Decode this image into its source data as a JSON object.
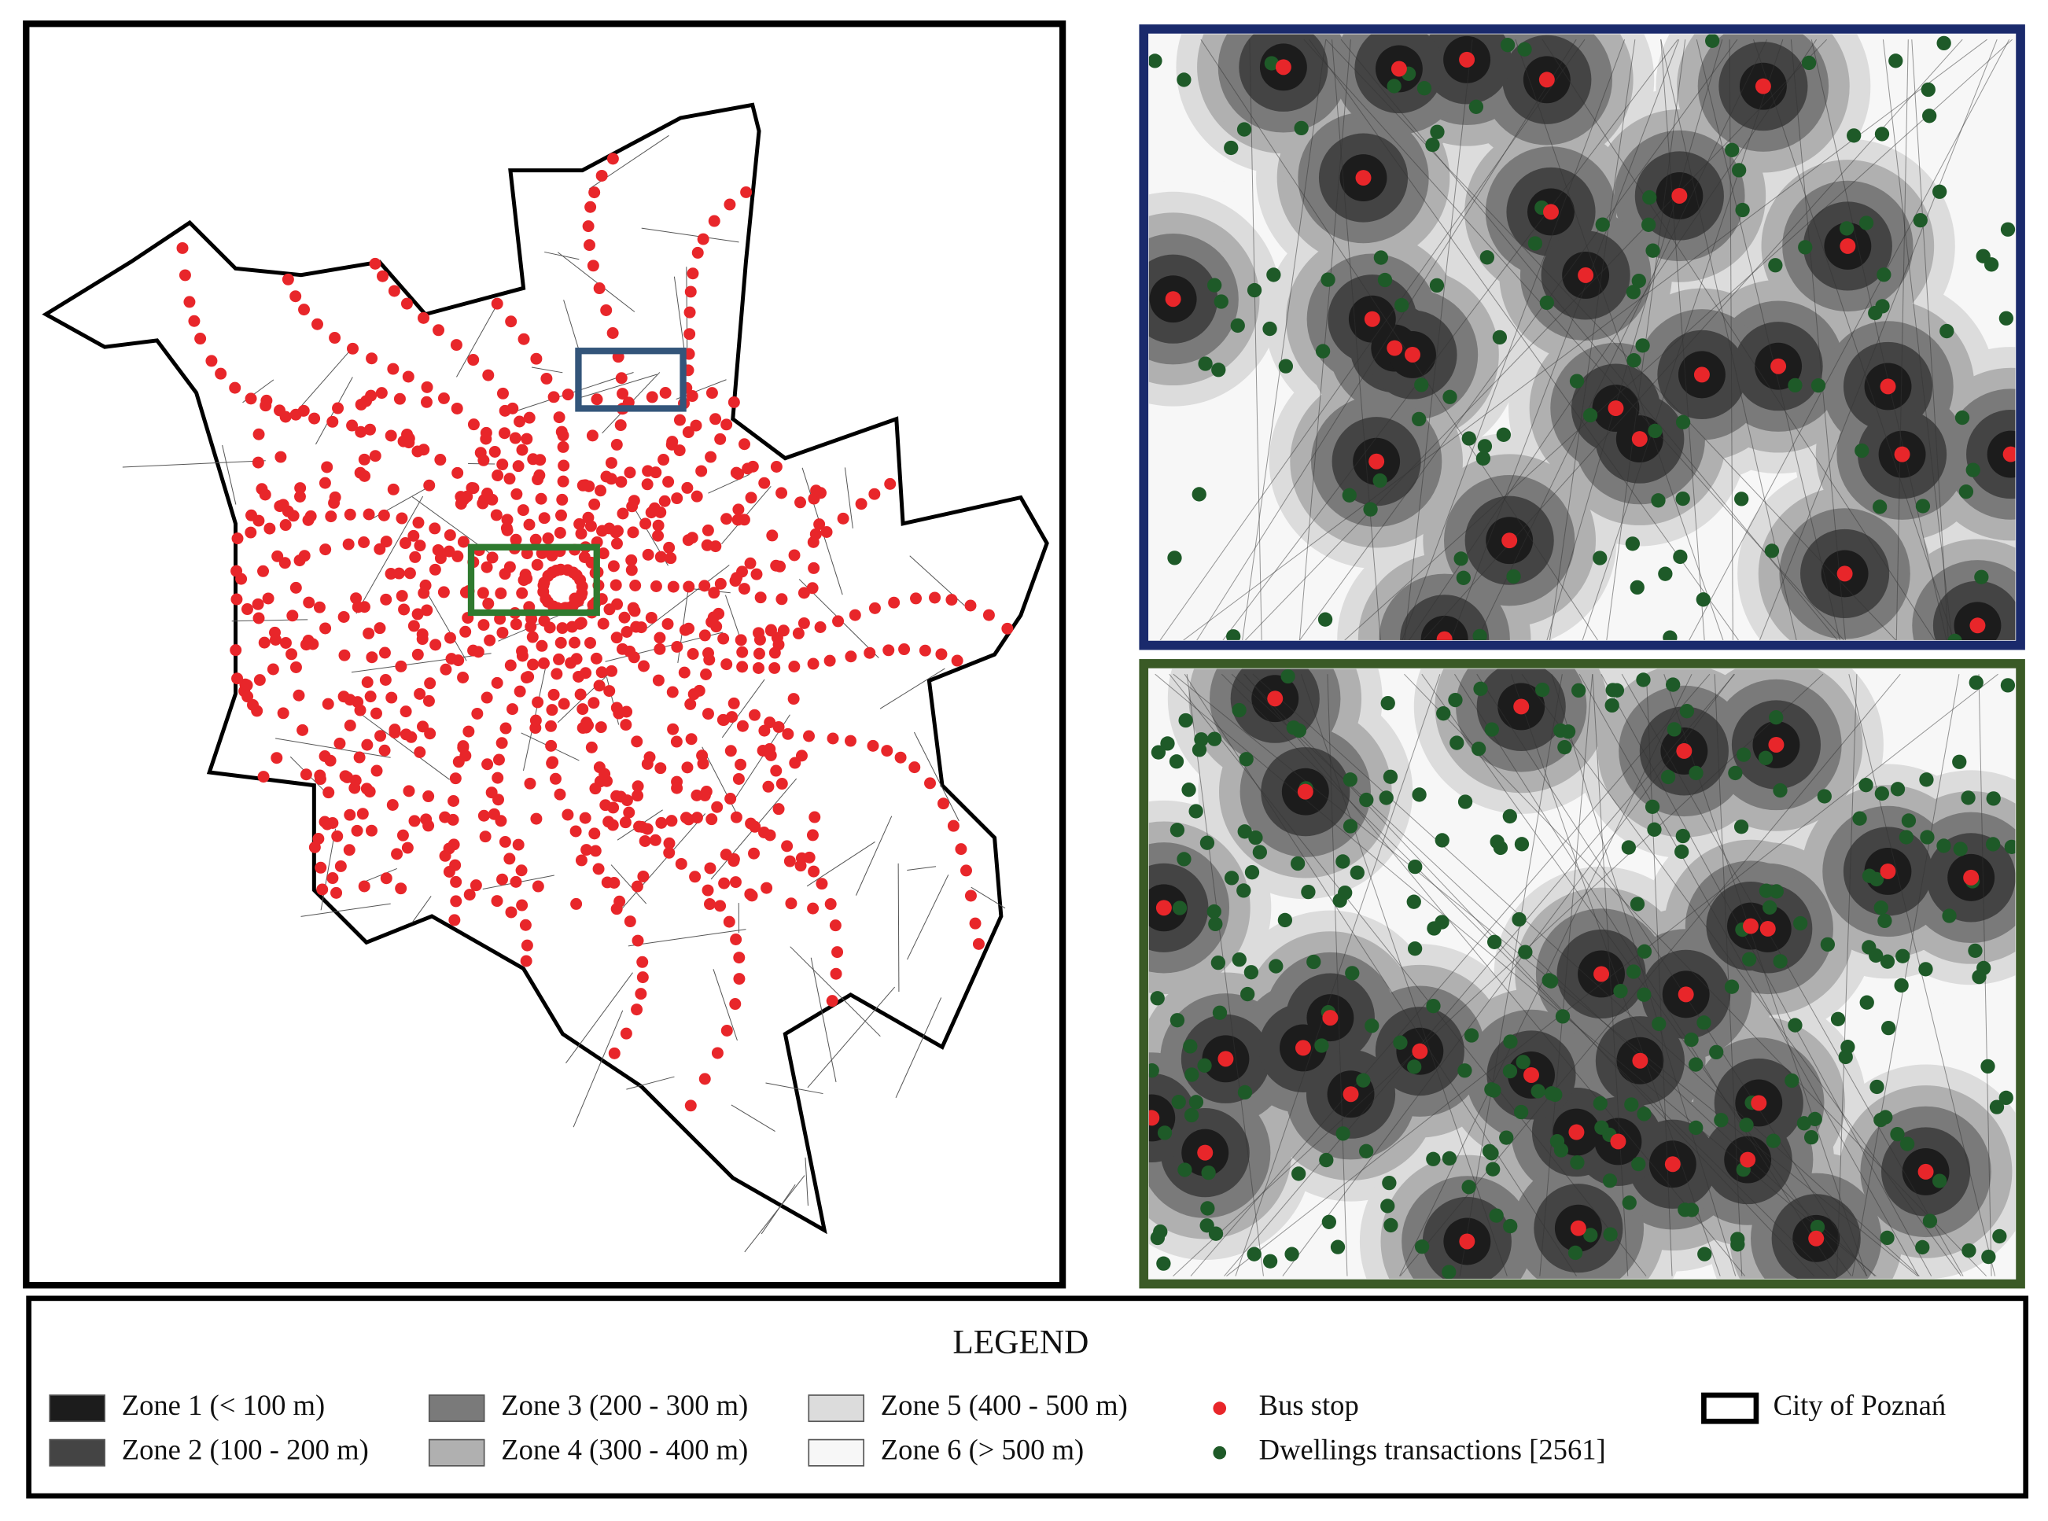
{
  "legend": {
    "title": "LEGEND",
    "items": [
      {
        "label": "Zone 1 (< 100 m)",
        "color": "#1c1c1c"
      },
      {
        "label": "Zone 2 (100 - 200 m)",
        "color": "#444444"
      },
      {
        "label": "Zone 3 (200 - 300 m)",
        "color": "#7a7a7a"
      },
      {
        "label": "Zone 4 (300 - 400 m)",
        "color": "#b0b0b0"
      },
      {
        "label": "Zone 5 (400 - 500 m)",
        "color": "#dcdcdc"
      },
      {
        "label": "Zone 6 (> 500 m)",
        "color": "#f7f7f7"
      },
      {
        "label": "Bus stop",
        "color": "#e8262a"
      },
      {
        "label": "Dwellings transactions [2561]",
        "color": "#1e5a28"
      },
      {
        "label": "City of Poznań",
        "color": "#000000"
      }
    ]
  }
}
